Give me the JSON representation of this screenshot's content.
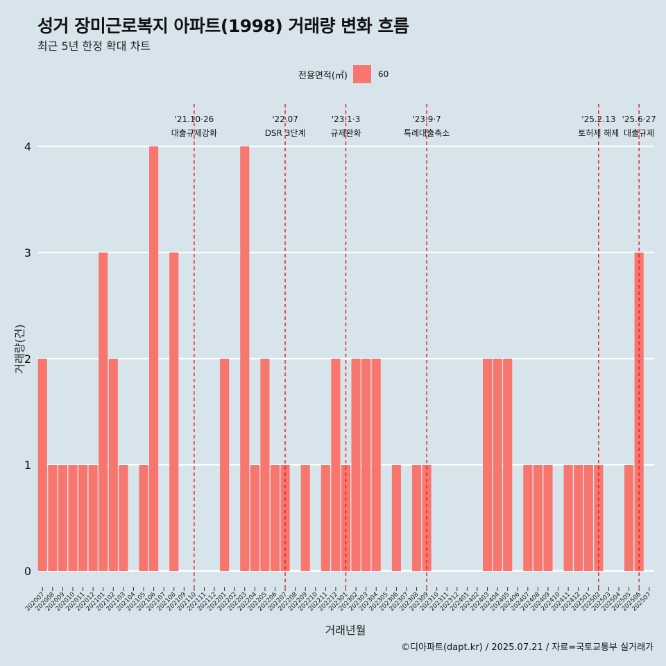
{
  "title": "성거 장미근로복지 아파트(1998) 거래량 변화 흐름",
  "subtitle": "최근 5년 한정 확대 차트",
  "legend": {
    "title": "전용면적(㎡)",
    "label": "60",
    "color": "#f8766d"
  },
  "caption": "©디아파트(dapt.kr) / 2025.07.21 / 자료=국토교통부 실거래가",
  "chart_data": {
    "type": "bar",
    "xlabel": "거래년월",
    "ylabel": "거래량(건)",
    "ylim": [
      0,
      4
    ],
    "yticks": [
      0,
      1,
      2,
      3,
      4
    ],
    "grid": "horizontal",
    "bar_color": "#f8766d",
    "categories": [
      "202007",
      "202008",
      "202009",
      "202010",
      "202011",
      "202012",
      "202101",
      "202102",
      "202103",
      "202104",
      "202105",
      "202106",
      "202107",
      "202108",
      "202109",
      "202110",
      "202111",
      "202112",
      "202201",
      "202202",
      "202203",
      "202204",
      "202205",
      "202206",
      "202207",
      "202208",
      "202209",
      "202210",
      "202211",
      "202212",
      "202301",
      "202302",
      "202303",
      "202304",
      "202305",
      "202306",
      "202307",
      "202308",
      "202309",
      "202310",
      "202311",
      "202312",
      "202401",
      "202402",
      "202403",
      "202404",
      "202405",
      "202406",
      "202407",
      "202408",
      "202409",
      "202410",
      "202411",
      "202412",
      "202501",
      "202502",
      "202503",
      "202504",
      "202505",
      "202506",
      "202507"
    ],
    "series": [
      {
        "name": "60",
        "values": [
          2,
          1,
          1,
          1,
          1,
          1,
          3,
          2,
          1,
          0,
          1,
          4,
          0,
          3,
          0,
          0,
          0,
          0,
          2,
          0,
          4,
          1,
          2,
          1,
          1,
          0,
          1,
          0,
          1,
          2,
          1,
          2,
          2,
          2,
          0,
          1,
          0,
          1,
          1,
          0,
          0,
          0,
          0,
          0,
          2,
          2,
          2,
          0,
          1,
          1,
          1,
          0,
          1,
          1,
          1,
          1,
          0,
          0,
          1,
          3,
          0
        ]
      }
    ],
    "annotations": [
      {
        "x": "202110",
        "line1": "'21.10·26",
        "line2": "대출규제강화"
      },
      {
        "x": "202207",
        "line1": "'22.07",
        "line2": "DSR 3단계"
      },
      {
        "x": "202301",
        "line1": "'23.1·3",
        "line2": "규제완화"
      },
      {
        "x": "202309",
        "line1": "'23.9·7",
        "line2": "특례대출축소"
      },
      {
        "x": "202502",
        "line1": "'25.2.13",
        "line2": "토허제 해제"
      },
      {
        "x": "202506",
        "line1": "'25.6·27",
        "line2": "대출규제"
      }
    ]
  }
}
